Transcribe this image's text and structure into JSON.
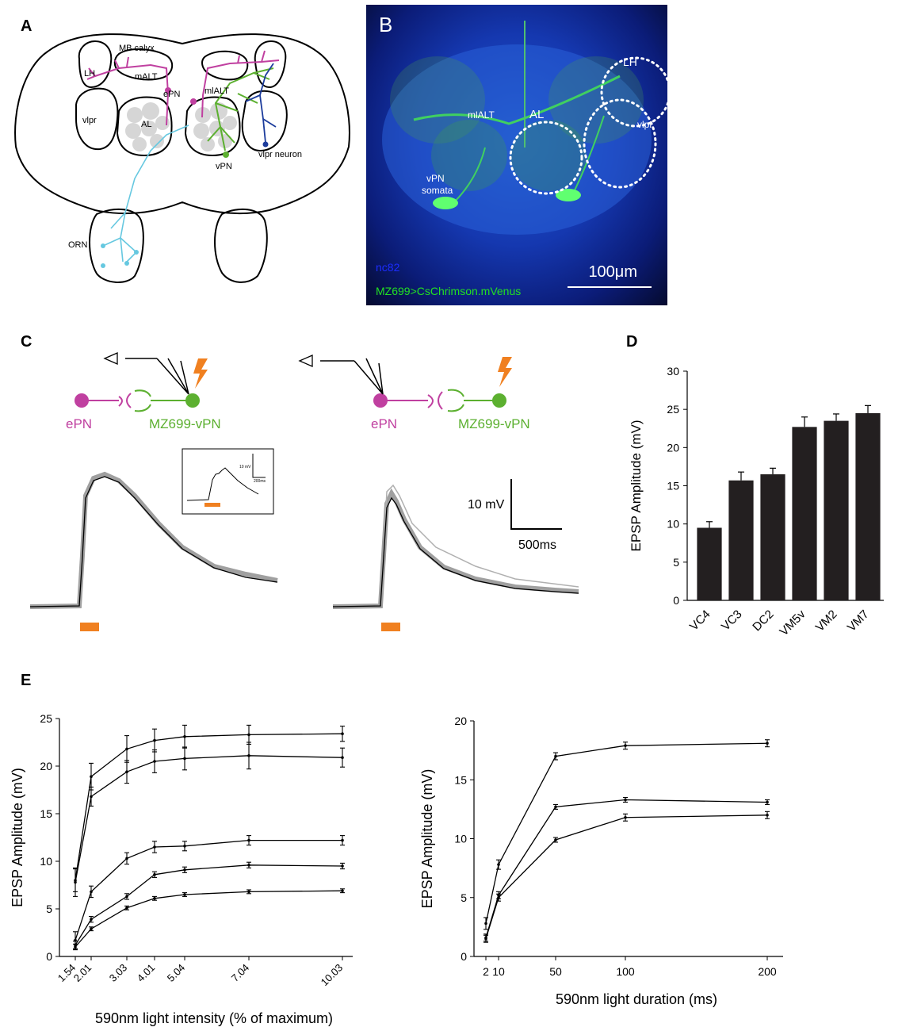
{
  "panels": {
    "A": "A",
    "B": "B",
    "C": "C",
    "D": "D",
    "E": "E"
  },
  "panelA": {
    "labels": {
      "mb_calyx": "MB calyx",
      "lh": "LH",
      "malt": "mALT",
      "epn": "ePN",
      "mlalt": "mlALT",
      "vlpr": "vlpr",
      "al": "AL",
      "vpn": "vPN",
      "vlpr_neuron": "vlpr neuron",
      "orn": "ORN"
    },
    "colors": {
      "epn": "#c040a0",
      "vpn": "#5cb030",
      "orn": "#66c8e0",
      "vlpr_neuron": "#1c3c9c",
      "neuropil": "#d6d6d6"
    }
  },
  "panelB": {
    "letter": "B",
    "labels": {
      "lh": "LH",
      "mlalt": "mlALT",
      "al": "AL",
      "vlpr": "vlpr",
      "vpn_somata_1": "vPN",
      "vpn_somata_2": "somata"
    },
    "stain": "nc82",
    "genotype": "MZ699>CsChrimson.mVenus",
    "scale_bar": "100μm",
    "colors": {
      "stain": "#1c2cff",
      "genotype": "#22e022"
    }
  },
  "panelC": {
    "left_schematic": {
      "epn": "ePN",
      "vpn": "MZ699-vPN"
    },
    "right_schematic": {
      "epn": "ePN",
      "vpn": "MZ699-vPN"
    },
    "inset_scale": {
      "v": "10 mV",
      "t": "200ms"
    },
    "scale_bar": {
      "v": "10 mV",
      "t": "500ms"
    },
    "colors": {
      "epn": "#c040a0",
      "vpn": "#5cb030",
      "light": "#f08020",
      "trace_gray": "#a0a0a0"
    }
  },
  "chart_data": [
    {
      "panel": "D",
      "type": "bar",
      "categories": [
        "VC4",
        "VC3",
        "DC2",
        "VM5v",
        "VM2",
        "VM7"
      ],
      "values": [
        9.5,
        15.7,
        16.5,
        22.7,
        23.5,
        24.5
      ],
      "errors": [
        0.8,
        1.1,
        0.8,
        1.3,
        0.9,
        1.0
      ],
      "xlabel": "",
      "ylabel": "EPSP Amplitude (mV)",
      "ylim": [
        0,
        30
      ],
      "yticks": [
        "0",
        "5",
        "10",
        "15",
        "20",
        "25",
        "30"
      ],
      "bar_color": "#231f20"
    },
    {
      "panel": "E-left",
      "type": "line",
      "x": [
        1.54,
        2.01,
        3.03,
        4.01,
        5.04,
        7.04,
        10.03
      ],
      "xticks": [
        "1.54",
        "2.01",
        "3.03",
        "4.01",
        "5.04",
        "7.04",
        "10.03"
      ],
      "series": [
        {
          "values": [
            8.0,
            18.9,
            21.8,
            22.7,
            23.1,
            23.3,
            23.4
          ],
          "errors": [
            1.2,
            1.4,
            1.4,
            1.2,
            1.2,
            1.0,
            0.8
          ]
        },
        {
          "values": [
            7.8,
            16.8,
            19.4,
            20.5,
            20.8,
            21.1,
            20.9
          ],
          "errors": [
            1.5,
            1.0,
            1.2,
            1.2,
            1.2,
            1.4,
            1.0
          ]
        },
        {
          "values": [
            1.7,
            6.8,
            10.3,
            11.5,
            11.6,
            12.2,
            12.2
          ],
          "errors": [
            0.9,
            0.6,
            0.6,
            0.6,
            0.5,
            0.5,
            0.5
          ]
        },
        {
          "values": [
            1.2,
            3.9,
            6.3,
            8.6,
            9.1,
            9.6,
            9.5
          ],
          "errors": [
            0.4,
            0.3,
            0.3,
            0.3,
            0.3,
            0.3,
            0.3
          ]
        },
        {
          "values": [
            1.0,
            2.9,
            5.1,
            6.1,
            6.5,
            6.8,
            6.9
          ],
          "errors": [
            0.3,
            0.2,
            0.2,
            0.2,
            0.2,
            0.2,
            0.2
          ]
        }
      ],
      "xlabel": "590nm light intensity (% of maximum)",
      "ylabel": "EPSP Amplitude (mV)",
      "ylim": [
        0,
        25
      ],
      "yticks": [
        "0",
        "5",
        "10",
        "15",
        "20",
        "25"
      ]
    },
    {
      "panel": "E-right",
      "type": "line",
      "x": [
        2,
        10,
        50,
        100,
        200
      ],
      "xticks": [
        "2",
        "10",
        "50",
        "100",
        "200"
      ],
      "series": [
        {
          "values": [
            2.8,
            7.8,
            17.0,
            17.9,
            18.1
          ],
          "errors": [
            0.5,
            0.4,
            0.3,
            0.3,
            0.3
          ]
        },
        {
          "values": [
            1.6,
            5.2,
            12.7,
            13.3,
            13.1
          ],
          "errors": [
            0.3,
            0.3,
            0.2,
            0.2,
            0.2
          ]
        },
        {
          "values": [
            1.5,
            5.0,
            9.9,
            11.8,
            12.0
          ],
          "errors": [
            0.3,
            0.3,
            0.2,
            0.3,
            0.3
          ]
        }
      ],
      "xlabel": "590nm light duration (ms)",
      "ylabel": "EPSP Amplitude (mV)",
      "ylim": [
        0,
        20
      ],
      "yticks": [
        "0",
        "5",
        "10",
        "15",
        "20"
      ]
    }
  ]
}
